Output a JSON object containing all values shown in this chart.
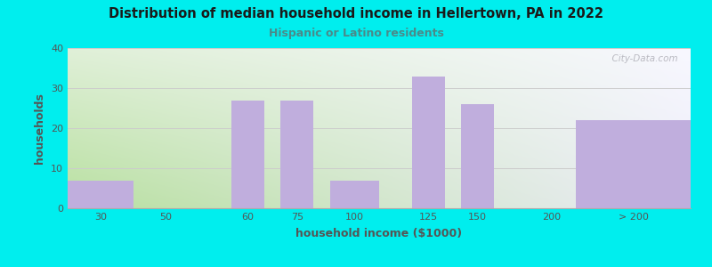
{
  "title": "Distribution of median household income in Hellertown, PA in 2022",
  "subtitle": "Hispanic or Latino residents",
  "xlabel": "household income ($1000)",
  "ylabel": "households",
  "bg_outer": "#00EEEE",
  "bar_color": "#C0AEDD",
  "title_color": "#1a1a1a",
  "subtitle_color": "#4a8a8a",
  "axis_label_color": "#555555",
  "tick_label_color": "#555555",
  "watermark": "  City-Data.com",
  "ylim": [
    0,
    40
  ],
  "yticks": [
    0,
    10,
    20,
    30,
    40
  ],
  "grid_color": "#cccccc",
  "plot_bg_colors": [
    "#c8e8b0",
    "#e8e8f4"
  ],
  "categories": [
    "30",
    "50",
    "60",
    "75",
    "100",
    "125",
    "150",
    "200",
    "> 200"
  ],
  "bar_lefts": [
    0.0,
    1.5,
    2.5,
    3.25,
    4.0,
    5.25,
    6.0,
    7.0,
    7.75
  ],
  "bar_rights": [
    1.0,
    1.5,
    3.0,
    3.75,
    4.75,
    5.75,
    6.5,
    7.0,
    9.5
  ],
  "values": [
    7,
    0,
    27,
    27,
    7,
    33,
    26,
    0,
    22
  ],
  "tick_xpos": [
    0.5,
    1.5,
    2.75,
    3.5,
    4.375,
    5.5,
    6.25,
    7.375,
    8.625
  ],
  "xlim": [
    0,
    9.5
  ]
}
